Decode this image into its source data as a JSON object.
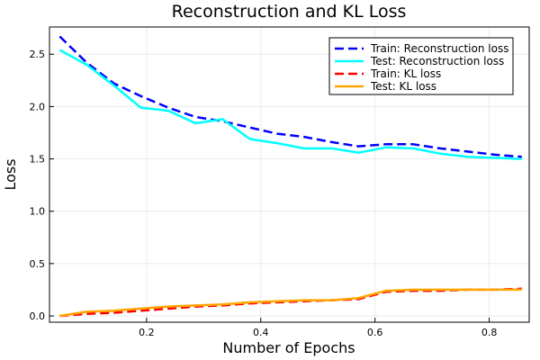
{
  "chart_data": {
    "type": "line",
    "title": "Reconstruction and KL Loss",
    "xlabel": "Number of Epochs",
    "ylabel": "Loss",
    "xlim": [
      0.03,
      0.87
    ],
    "ylim": [
      -0.06,
      2.76
    ],
    "xticks": [
      0.2,
      0.4,
      0.6,
      0.8
    ],
    "xtick_labels": [
      "0.2",
      "0.4",
      "0.6",
      "0.8"
    ],
    "yticks": [
      0.0,
      0.5,
      1.0,
      1.5,
      2.0,
      2.5
    ],
    "ytick_labels": [
      "0.0",
      "0.5",
      "1.0",
      "1.5",
      "2.0",
      "2.5"
    ],
    "grid": true,
    "legend_position": "top-right",
    "x": [
      0.048,
      0.095,
      0.143,
      0.19,
      0.238,
      0.286,
      0.333,
      0.381,
      0.429,
      0.476,
      0.524,
      0.571,
      0.619,
      0.667,
      0.714,
      0.762,
      0.81,
      0.857
    ],
    "series": [
      {
        "name": "Train: Reconstruction loss",
        "color": "#0000ff",
        "dashed": true,
        "values": [
          2.67,
          2.42,
          2.22,
          2.1,
          1.99,
          1.9,
          1.86,
          1.8,
          1.74,
          1.71,
          1.66,
          1.62,
          1.64,
          1.64,
          1.6,
          1.57,
          1.54,
          1.52
        ]
      },
      {
        "name": "Test: Reconstruction loss",
        "color": "#00ffff",
        "dashed": false,
        "values": [
          2.54,
          2.4,
          2.2,
          1.99,
          1.96,
          1.84,
          1.88,
          1.69,
          1.65,
          1.6,
          1.6,
          1.56,
          1.61,
          1.6,
          1.55,
          1.52,
          1.51,
          1.5
        ]
      },
      {
        "name": "Train: KL loss",
        "color": "#ff0000",
        "dashed": true,
        "values": [
          0.0,
          0.02,
          0.03,
          0.05,
          0.07,
          0.09,
          0.1,
          0.12,
          0.13,
          0.14,
          0.15,
          0.16,
          0.23,
          0.24,
          0.24,
          0.25,
          0.25,
          0.26
        ]
      },
      {
        "name": "Test: KL loss",
        "color": "#ffa500",
        "dashed": false,
        "values": [
          0.0,
          0.04,
          0.05,
          0.07,
          0.09,
          0.1,
          0.11,
          0.13,
          0.14,
          0.15,
          0.15,
          0.17,
          0.24,
          0.25,
          0.25,
          0.25,
          0.25,
          0.25
        ]
      }
    ]
  }
}
